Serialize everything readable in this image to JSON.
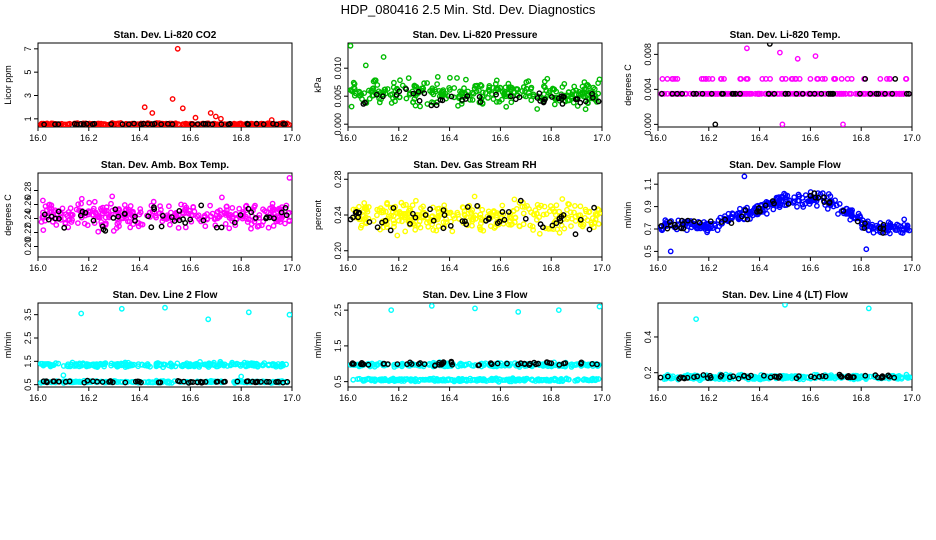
{
  "title": "HDP_080416  2.5 Min. Std. Dev. Diagnostics",
  "colors": {
    "red": "#ff0000",
    "black": "#000000",
    "green": "#00bb00",
    "magenta": "#ff00ff",
    "yellow": "#ffff00",
    "blue": "#0000ff",
    "cyan": "#00ffff"
  },
  "chart_data": [
    {
      "type": "scatter",
      "title": "Stan. Dev. Li-820 CO2",
      "ylabel": "Licor ppm",
      "xlim": [
        16.0,
        17.0
      ],
      "ylim": [
        0.3,
        7.5
      ],
      "x_ticks": [
        "16.0",
        "16.2",
        "16.4",
        "16.6",
        "16.8",
        "17.0"
      ],
      "y_ticks": [
        {
          "v": 1,
          "label": "1"
        },
        {
          "v": 3,
          "label": "3"
        },
        {
          "v": 5,
          "label": "5"
        },
        {
          "v": 7,
          "label": "7"
        }
      ],
      "series": [
        {
          "name": "primary",
          "color": "#ff0000",
          "baseline": 0.55,
          "spread": 0.08,
          "n": 240,
          "outliers": [
            [
              16.42,
              2.0
            ],
            [
              16.45,
              1.5
            ],
            [
              16.53,
              2.7
            ],
            [
              16.55,
              7.0
            ],
            [
              16.57,
              1.9
            ],
            [
              16.62,
              1.1
            ],
            [
              16.68,
              1.5
            ],
            [
              16.7,
              1.2
            ],
            [
              16.72,
              1.0
            ],
            [
              16.92,
              0.9
            ]
          ]
        },
        {
          "name": "secondary",
          "color": "#000000",
          "baseline": 0.55,
          "spread": 0.05,
          "n": 40,
          "outliers": []
        }
      ]
    },
    {
      "type": "scatter",
      "title": "Stan. Dev. Li-820 Pressure",
      "ylabel": "kPa",
      "xlim": [
        16.0,
        17.0
      ],
      "ylim": [
        -0.0005,
        0.0145
      ],
      "x_ticks": [
        "16.0",
        "16.2",
        "16.4",
        "16.6",
        "16.8",
        "17.0"
      ],
      "y_ticks": [
        {
          "v": 0.0,
          "label": "0.000"
        },
        {
          "v": 0.005,
          "label": "0.005"
        },
        {
          "v": 0.01,
          "label": "0.010"
        }
      ],
      "series": [
        {
          "name": "primary",
          "color": "#00bb00",
          "baseline": 0.0055,
          "spread": 0.0022,
          "n": 300,
          "outliers": [
            [
              16.01,
              0.014
            ],
            [
              16.07,
              0.0105
            ],
            [
              16.14,
              0.012
            ],
            [
              16.99,
              0.008
            ]
          ]
        },
        {
          "name": "secondary",
          "color": "#000000",
          "baseline": 0.0048,
          "spread": 0.0015,
          "n": 45,
          "outliers": []
        }
      ]
    },
    {
      "type": "scatter",
      "title": "Stan. Dev. Li-820 Temp.",
      "ylabel": "degrees C",
      "xlim": [
        16.0,
        17.0
      ],
      "ylim": [
        -0.0003,
        0.0093
      ],
      "x_ticks": [
        "16.0",
        "16.2",
        "16.4",
        "16.6",
        "16.8",
        "17.0"
      ],
      "y_ticks": [
        {
          "v": 0.0,
          "label": "0.000"
        },
        {
          "v": 0.004,
          "label": "0.004"
        },
        {
          "v": 0.008,
          "label": "0.008"
        }
      ],
      "levels": [
        0.0,
        0.0035,
        0.0052
      ],
      "series": [
        {
          "name": "primary",
          "color": "#ff00ff",
          "baseline": 0.0035,
          "spread": 0.0016,
          "n": 280,
          "quantize": true,
          "outliers": [
            [
              16.35,
              0.0087
            ],
            [
              16.48,
              0.0082
            ],
            [
              16.55,
              0.0075
            ],
            [
              16.62,
              0.0078
            ]
          ]
        },
        {
          "name": "secondary",
          "color": "#000000",
          "baseline": 0.003,
          "spread": 0.002,
          "n": 40,
          "quantize": true,
          "outliers": [
            [
              16.44,
              0.0092
            ]
          ]
        }
      ]
    },
    {
      "type": "scatter",
      "title": "Stan. Dev. Amb. Box Temp.",
      "ylabel": "degrees C",
      "xlim": [
        16.0,
        17.0
      ],
      "ylim": [
        0.185,
        0.305
      ],
      "x_ticks": [
        "16.0",
        "16.2",
        "16.4",
        "16.6",
        "16.8",
        "17.0"
      ],
      "y_ticks": [
        {
          "v": 0.2,
          "label": "0.20"
        },
        {
          "v": 0.22,
          "label": "0.22"
        },
        {
          "v": 0.24,
          "label": "0.24"
        },
        {
          "v": 0.26,
          "label": "0.26"
        },
        {
          "v": 0.28,
          "label": "0.28"
        }
      ],
      "series": [
        {
          "name": "primary",
          "color": "#ff00ff",
          "baseline": 0.245,
          "spread": 0.018,
          "n": 320,
          "outliers": [
            [
              16.99,
              0.298
            ]
          ]
        },
        {
          "name": "secondary",
          "color": "#000000",
          "baseline": 0.242,
          "spread": 0.016,
          "n": 50,
          "outliers": []
        }
      ]
    },
    {
      "type": "scatter",
      "title": "Stan. Dev. Gas Stream RH",
      "ylabel": "percent",
      "xlim": [
        16.0,
        17.0
      ],
      "ylim": [
        0.193,
        0.287
      ],
      "x_ticks": [
        "16.0",
        "16.2",
        "16.4",
        "16.6",
        "16.8",
        "17.0"
      ],
      "y_ticks": [
        {
          "v": 0.2,
          "label": "0.20"
        },
        {
          "v": 0.24,
          "label": "0.24"
        },
        {
          "v": 0.28,
          "label": "0.28"
        }
      ],
      "series": [
        {
          "name": "primary",
          "color": "#ffff00",
          "baseline": 0.238,
          "spread": 0.016,
          "n": 320,
          "outliers": []
        },
        {
          "name": "secondary",
          "color": "#000000",
          "baseline": 0.236,
          "spread": 0.014,
          "n": 50,
          "outliers": []
        }
      ]
    },
    {
      "type": "scatter",
      "title": "Stan. Dev. Sample Flow",
      "ylabel": "ml/min",
      "xlim": [
        16.0,
        17.0
      ],
      "ylim": [
        0.45,
        1.2
      ],
      "x_ticks": [
        "16.0",
        "16.2",
        "16.4",
        "16.6",
        "16.8",
        "17.0"
      ],
      "y_ticks": [
        {
          "v": 0.5,
          "label": "0.5"
        },
        {
          "v": 0.7,
          "label": "0.7"
        },
        {
          "v": 0.9,
          "label": "0.9"
        },
        {
          "v": 1.1,
          "label": "1.1"
        }
      ],
      "trend": [
        [
          16.0,
          0.75
        ],
        [
          16.2,
          0.72
        ],
        [
          16.35,
          0.85
        ],
        [
          16.5,
          0.95
        ],
        [
          16.65,
          0.98
        ],
        [
          16.75,
          0.85
        ],
        [
          16.85,
          0.7
        ],
        [
          17.0,
          0.72
        ]
      ],
      "series": [
        {
          "name": "primary",
          "color": "#0000ff",
          "baseline": 0,
          "spread": 0.06,
          "n": 320,
          "follow_trend": true,
          "outliers": [
            [
              16.34,
              1.17
            ],
            [
              16.05,
              0.5
            ],
            [
              16.82,
              0.52
            ]
          ]
        },
        {
          "name": "secondary",
          "color": "#000000",
          "baseline": 0,
          "spread": 0.05,
          "n": 45,
          "follow_trend": true,
          "outliers": []
        }
      ]
    },
    {
      "type": "scatter",
      "title": "Stan. Dev. Line 2 Flow",
      "ylabel": "ml/min",
      "xlim": [
        16.0,
        17.0
      ],
      "ylim": [
        0.4,
        4.0
      ],
      "x_ticks": [
        "16.0",
        "16.2",
        "16.4",
        "16.6",
        "16.8",
        "17.0"
      ],
      "y_ticks": [
        {
          "v": 0.5,
          "label": "0.5"
        },
        {
          "v": 1.5,
          "label": "1.5"
        },
        {
          "v": 2.5,
          "label": "2.5"
        },
        {
          "v": 3.5,
          "label": "3.5"
        }
      ],
      "series": [
        {
          "name": "band-high",
          "color": "#00ffff",
          "baseline": 1.35,
          "spread": 0.09,
          "n": 240,
          "outliers": [
            [
              16.17,
              3.55
            ],
            [
              16.33,
              3.75
            ],
            [
              16.5,
              3.8
            ],
            [
              16.67,
              3.3
            ],
            [
              16.83,
              3.6
            ],
            [
              16.99,
              3.5
            ],
            [
              16.1,
              0.9
            ],
            [
              16.8,
              0.85
            ]
          ]
        },
        {
          "name": "band-low",
          "color": "#00ffff",
          "baseline": 0.62,
          "spread": 0.04,
          "n": 200,
          "outliers": []
        },
        {
          "name": "secondary",
          "color": "#000000",
          "baseline": 0.62,
          "spread": 0.04,
          "n": 55,
          "outliers": []
        }
      ]
    },
    {
      "type": "scatter",
      "title": "Stan. Dev. Line 3 Flow",
      "ylabel": "ml/min",
      "xlim": [
        16.0,
        17.0
      ],
      "ylim": [
        0.35,
        2.7
      ],
      "x_ticks": [
        "16.0",
        "16.2",
        "16.4",
        "16.6",
        "16.8",
        "17.0"
      ],
      "y_ticks": [
        {
          "v": 0.5,
          "label": "0.5"
        },
        {
          "v": 1.5,
          "label": "1.5"
        },
        {
          "v": 2.5,
          "label": "2.5"
        }
      ],
      "series": [
        {
          "name": "band-high",
          "color": "#00ffff",
          "baseline": 0.97,
          "spread": 0.05,
          "n": 240,
          "outliers": [
            [
              16.17,
              2.5
            ],
            [
              16.33,
              2.62
            ],
            [
              16.5,
              2.55
            ],
            [
              16.67,
              2.45
            ],
            [
              16.83,
              2.5
            ],
            [
              16.99,
              2.6
            ]
          ]
        },
        {
          "name": "band-low",
          "color": "#00ffff",
          "baseline": 0.55,
          "spread": 0.04,
          "n": 220,
          "outliers": []
        },
        {
          "name": "secondary",
          "color": "#000000",
          "baseline": 1.0,
          "spread": 0.05,
          "n": 55,
          "outliers": []
        }
      ]
    },
    {
      "type": "scatter",
      "title": "Stan. Dev. Line 4 (LT) Flow",
      "ylabel": "ml/min",
      "xlim": [
        16.0,
        17.0
      ],
      "ylim": [
        0.12,
        0.59
      ],
      "x_ticks": [
        "16.0",
        "16.2",
        "16.4",
        "16.6",
        "16.8",
        "17.0"
      ],
      "y_ticks": [
        {
          "v": 0.2,
          "label": "0.2"
        },
        {
          "v": 0.4,
          "label": "0.4"
        }
      ],
      "series": [
        {
          "name": "primary",
          "color": "#00ffff",
          "baseline": 0.175,
          "spread": 0.012,
          "n": 300,
          "outliers": [
            [
              16.15,
              0.5
            ],
            [
              16.5,
              0.58
            ],
            [
              16.83,
              0.56
            ]
          ]
        },
        {
          "name": "secondary",
          "color": "#000000",
          "baseline": 0.178,
          "spread": 0.01,
          "n": 55,
          "outliers": []
        }
      ]
    }
  ]
}
